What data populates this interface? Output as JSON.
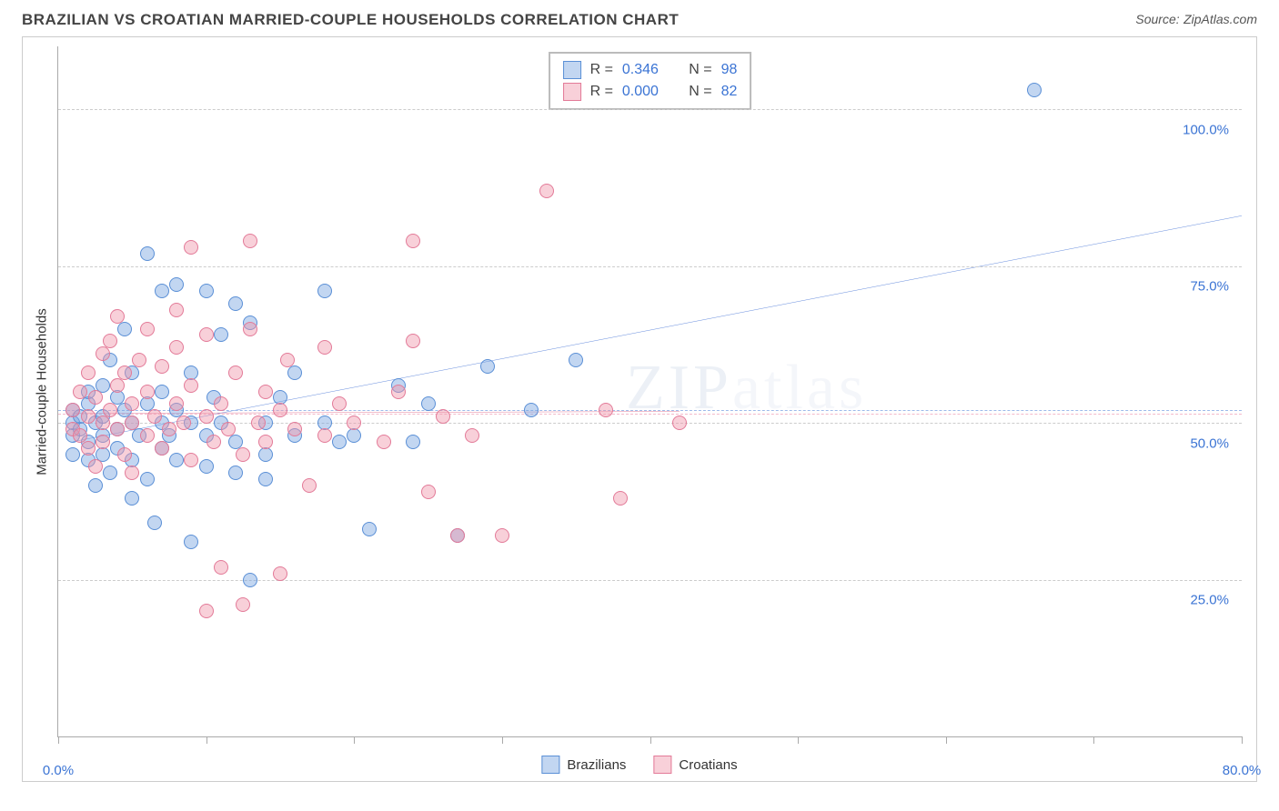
{
  "title": "BRAZILIAN VS CROATIAN MARRIED-COUPLE HOUSEHOLDS CORRELATION CHART",
  "source_label": "Source:",
  "source_value": "ZipAtlas.com",
  "watermark": {
    "strong": "ZIP",
    "light": "atlas"
  },
  "chart": {
    "type": "scatter",
    "ylabel": "Married-couple Households",
    "xlim": [
      0,
      80
    ],
    "ylim": [
      0,
      110
    ],
    "xtick_positions": [
      0,
      10,
      20,
      30,
      40,
      50,
      60,
      70,
      80
    ],
    "xtick_labels_shown": {
      "0": "0.0%",
      "80": "80.0%"
    },
    "ytick_positions": [
      25,
      50,
      75,
      100
    ],
    "ytick_labels": {
      "25": "25.0%",
      "50": "50.0%",
      "75": "75.0%",
      "100": "100.0%"
    },
    "grid_color": "#cccccc",
    "axis_color": "#aaaaaa",
    "background_color": "#ffffff",
    "tick_label_color": "#3b74d4",
    "marker_radius": 8,
    "marker_border_width": 1,
    "series": [
      {
        "name": "Brazilians",
        "fill": "rgba(120,165,225,0.45)",
        "stroke": "#5a8fd6",
        "R": "0.346",
        "N": "98",
        "trend": {
          "x1": 1,
          "y1": 47,
          "x2": 80,
          "y2": 83,
          "color": "#2a5fd0",
          "width": 3
        },
        "mean_line": {
          "y": 52,
          "color": "#9cbaea"
        },
        "points": [
          [
            1,
            48
          ],
          [
            1,
            50
          ],
          [
            1,
            52
          ],
          [
            1,
            45
          ],
          [
            1.5,
            49
          ],
          [
            1.5,
            51
          ],
          [
            2,
            53
          ],
          [
            2,
            47
          ],
          [
            2,
            44
          ],
          [
            2,
            55
          ],
          [
            2.5,
            50
          ],
          [
            2.5,
            40
          ],
          [
            3,
            45
          ],
          [
            3,
            51
          ],
          [
            3,
            56
          ],
          [
            3,
            48
          ],
          [
            3.5,
            60
          ],
          [
            3.5,
            42
          ],
          [
            4,
            54
          ],
          [
            4,
            49
          ],
          [
            4,
            46
          ],
          [
            4.5,
            52
          ],
          [
            4.5,
            65
          ],
          [
            5,
            50
          ],
          [
            5,
            38
          ],
          [
            5,
            44
          ],
          [
            5,
            58
          ],
          [
            5.5,
            48
          ],
          [
            6,
            77
          ],
          [
            6,
            41
          ],
          [
            6,
            53
          ],
          [
            6.5,
            34
          ],
          [
            7,
            50
          ],
          [
            7,
            46
          ],
          [
            7,
            55
          ],
          [
            7,
            71
          ],
          [
            7.5,
            48
          ],
          [
            8,
            44
          ],
          [
            8,
            52
          ],
          [
            8,
            72
          ],
          [
            9,
            31
          ],
          [
            9,
            50
          ],
          [
            9,
            58
          ],
          [
            10,
            43
          ],
          [
            10,
            48
          ],
          [
            10,
            71
          ],
          [
            10.5,
            54
          ],
          [
            11,
            64
          ],
          [
            11,
            50
          ],
          [
            12,
            42
          ],
          [
            12,
            47
          ],
          [
            12,
            69
          ],
          [
            13,
            66
          ],
          [
            13,
            25
          ],
          [
            14,
            45
          ],
          [
            14,
            50
          ],
          [
            14,
            41
          ],
          [
            15,
            54
          ],
          [
            16,
            48
          ],
          [
            16,
            58
          ],
          [
            18,
            71
          ],
          [
            18,
            50
          ],
          [
            19,
            47
          ],
          [
            20,
            48
          ],
          [
            21,
            33
          ],
          [
            23,
            56
          ],
          [
            24,
            47
          ],
          [
            25,
            53
          ],
          [
            27,
            32
          ],
          [
            29,
            59
          ],
          [
            32,
            52
          ],
          [
            35,
            60
          ],
          [
            66,
            103
          ]
        ]
      },
      {
        "name": "Croatians",
        "fill": "rgba(240,150,170,0.45)",
        "stroke": "#e37a98",
        "R": "0.000",
        "N": "82",
        "trend": {
          "x1": 1,
          "y1": 51.5,
          "x2": 42,
          "y2": 51.8,
          "color": "#d94a72",
          "width": 3
        },
        "mean_line": {
          "y": 51.5,
          "color": "#f3b9c9"
        },
        "points": [
          [
            1,
            49
          ],
          [
            1,
            52
          ],
          [
            1.5,
            55
          ],
          [
            1.5,
            48
          ],
          [
            2,
            58
          ],
          [
            2,
            51
          ],
          [
            2,
            46
          ],
          [
            2.5,
            43
          ],
          [
            2.5,
            54
          ],
          [
            3,
            50
          ],
          [
            3,
            61
          ],
          [
            3,
            47
          ],
          [
            3.5,
            52
          ],
          [
            3.5,
            63
          ],
          [
            4,
            56
          ],
          [
            4,
            67
          ],
          [
            4,
            49
          ],
          [
            4.5,
            45
          ],
          [
            4.5,
            58
          ],
          [
            5,
            50
          ],
          [
            5,
            53
          ],
          [
            5,
            42
          ],
          [
            5.5,
            60
          ],
          [
            6,
            48
          ],
          [
            6,
            65
          ],
          [
            6,
            55
          ],
          [
            6.5,
            51
          ],
          [
            7,
            46
          ],
          [
            7,
            59
          ],
          [
            7.5,
            49
          ],
          [
            8,
            53
          ],
          [
            8,
            62
          ],
          [
            8,
            68
          ],
          [
            8.5,
            50
          ],
          [
            9,
            56
          ],
          [
            9,
            44
          ],
          [
            9,
            78
          ],
          [
            10,
            20
          ],
          [
            10,
            51
          ],
          [
            10,
            64
          ],
          [
            10.5,
            47
          ],
          [
            11,
            53
          ],
          [
            11,
            27
          ],
          [
            11.5,
            49
          ],
          [
            12,
            58
          ],
          [
            12.5,
            21
          ],
          [
            12.5,
            45
          ],
          [
            13,
            65
          ],
          [
            13,
            79
          ],
          [
            13.5,
            50
          ],
          [
            14,
            47
          ],
          [
            14,
            55
          ],
          [
            15,
            52
          ],
          [
            15,
            26
          ],
          [
            15.5,
            60
          ],
          [
            16,
            49
          ],
          [
            17,
            40
          ],
          [
            18,
            48
          ],
          [
            18,
            62
          ],
          [
            19,
            53
          ],
          [
            20,
            50
          ],
          [
            22,
            47
          ],
          [
            23,
            55
          ],
          [
            24,
            79
          ],
          [
            24,
            63
          ],
          [
            25,
            39
          ],
          [
            26,
            51
          ],
          [
            27,
            32
          ],
          [
            28,
            48
          ],
          [
            30,
            32
          ],
          [
            33,
            87
          ],
          [
            37,
            52
          ],
          [
            38,
            38
          ],
          [
            42,
            50
          ]
        ]
      }
    ],
    "legend_top": {
      "R_label": "R =",
      "N_label": "N ="
    },
    "legend_bottom_labels": [
      "Brazilians",
      "Croatians"
    ]
  }
}
